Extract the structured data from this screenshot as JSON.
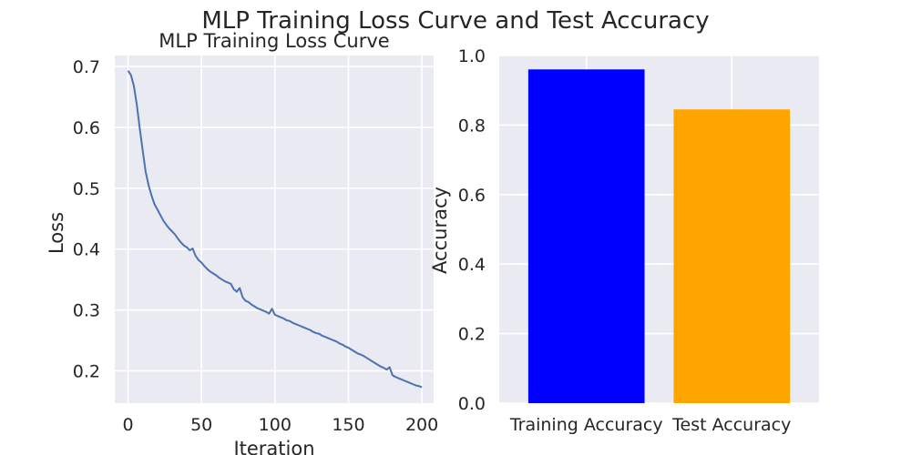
{
  "figure": {
    "title": "MLP Training Loss Curve and Test Accuracy"
  },
  "chart_data": [
    {
      "type": "line",
      "title": "MLP Training Loss Curve",
      "xlabel": "Iteration",
      "ylabel": "Loss",
      "xlim": [
        -9,
        208
      ],
      "ylim": [
        0.147,
        0.718
      ],
      "xticks": [
        0,
        50,
        100,
        150,
        200
      ],
      "yticks": [
        0.2,
        0.3,
        0.4,
        0.5,
        0.6,
        0.7
      ],
      "ytick_labels": [
        "0.2",
        "0.3",
        "0.4",
        "0.5",
        "0.6",
        "0.7"
      ],
      "grid": true,
      "line_color": "#4c72b0",
      "series": [
        {
          "x": [
            0,
            2,
            4,
            6,
            8,
            10,
            12,
            14,
            16,
            18,
            20,
            22,
            24,
            26,
            28,
            30,
            32,
            34,
            36,
            38,
            40,
            42,
            44,
            46,
            48,
            50,
            52,
            54,
            56,
            58,
            60,
            62,
            64,
            66,
            68,
            70,
            72,
            74,
            76,
            78,
            80,
            82,
            84,
            86,
            88,
            90,
            92,
            94,
            96,
            98,
            100,
            102,
            104,
            106,
            108,
            110,
            112,
            114,
            116,
            118,
            120,
            122,
            124,
            126,
            128,
            130,
            132,
            134,
            136,
            138,
            140,
            142,
            144,
            146,
            148,
            150,
            152,
            154,
            156,
            158,
            160,
            162,
            164,
            166,
            168,
            170,
            172,
            174,
            176,
            178,
            180,
            182,
            184,
            186,
            188,
            190,
            192,
            194,
            196,
            198,
            200
          ],
          "y": [
            0.693,
            0.686,
            0.668,
            0.637,
            0.598,
            0.562,
            0.527,
            0.505,
            0.488,
            0.474,
            0.465,
            0.456,
            0.447,
            0.44,
            0.434,
            0.429,
            0.424,
            0.417,
            0.411,
            0.406,
            0.403,
            0.398,
            0.401,
            0.389,
            0.382,
            0.378,
            0.372,
            0.367,
            0.363,
            0.36,
            0.357,
            0.353,
            0.35,
            0.347,
            0.345,
            0.343,
            0.334,
            0.33,
            0.336,
            0.321,
            0.315,
            0.313,
            0.309,
            0.306,
            0.303,
            0.301,
            0.299,
            0.297,
            0.294,
            0.302,
            0.292,
            0.29,
            0.288,
            0.286,
            0.283,
            0.282,
            0.279,
            0.277,
            0.275,
            0.273,
            0.271,
            0.269,
            0.267,
            0.264,
            0.262,
            0.261,
            0.258,
            0.256,
            0.254,
            0.252,
            0.25,
            0.248,
            0.245,
            0.243,
            0.24,
            0.238,
            0.235,
            0.232,
            0.229,
            0.227,
            0.225,
            0.222,
            0.219,
            0.216,
            0.213,
            0.21,
            0.207,
            0.205,
            0.202,
            0.206,
            0.193,
            0.19,
            0.188,
            0.186,
            0.184,
            0.182,
            0.18,
            0.178,
            0.176,
            0.175,
            0.173
          ]
        }
      ]
    },
    {
      "type": "bar",
      "title": "",
      "xlabel": "",
      "ylabel": "Accuracy",
      "categories": [
        "Training Accuracy",
        "Test Accuracy"
      ],
      "values": [
        0.96,
        0.845
      ],
      "colors": [
        "#0000ff",
        "#ffa500"
      ],
      "ylim": [
        0,
        1
      ],
      "yticks": [
        0,
        0.2,
        0.4,
        0.6,
        0.8,
        1.0
      ],
      "ytick_labels": [
        "0.0",
        "0.2",
        "0.4",
        "0.6",
        "0.8",
        "1.0"
      ],
      "grid": true
    }
  ]
}
